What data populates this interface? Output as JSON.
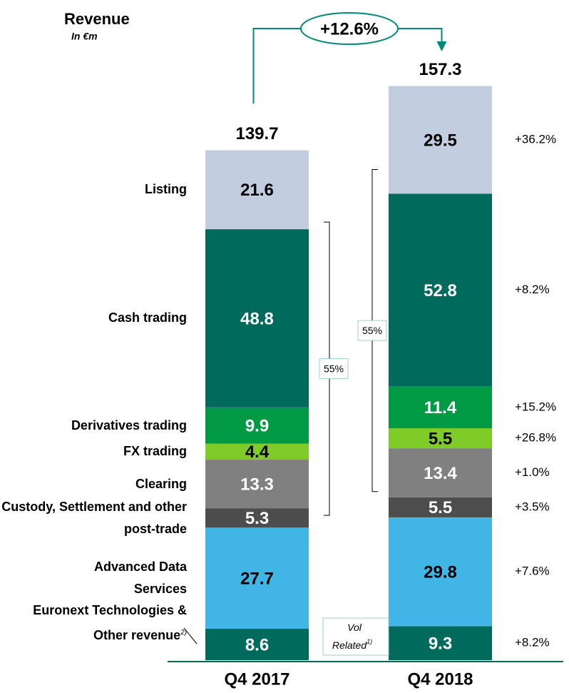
{
  "chart_data": {
    "type": "stacked-bar",
    "title": "Revenue",
    "subtitle": "In €m",
    "categories": [
      "Q4 2017",
      "Q4 2018"
    ],
    "totals": [
      139.7,
      157.3
    ],
    "growth": {
      "value": 12.6,
      "label": "+12.6%"
    },
    "series": [
      {
        "name": "Euronext Technologies & Other revenue",
        "footnote": "2)",
        "color": "#006a5c",
        "label_color": "#ffffff",
        "values": [
          8.6,
          9.3
        ],
        "change": {
          "value": 8.2,
          "label": "+8.2%"
        }
      },
      {
        "name": "Advanced Data Services",
        "color": "#41b6e6",
        "label_color": "#000000",
        "values": [
          27.7,
          29.8
        ],
        "change": {
          "value": 7.6,
          "label": "+7.6%"
        }
      },
      {
        "name": "Custody, Settlement and other post-trade",
        "color": "#4d4d4d",
        "label_color": "#ffffff",
        "values": [
          5.3,
          5.5
        ],
        "change": {
          "value": 3.5,
          "label": "+3.5%"
        }
      },
      {
        "name": "Clearing",
        "color": "#808080",
        "label_color": "#ffffff",
        "values": [
          13.3,
          13.4
        ],
        "change": {
          "value": 1.0,
          "label": "+1.0%"
        }
      },
      {
        "name": "FX trading",
        "color": "#7fcc28",
        "label_color": "#000000",
        "values": [
          4.4,
          5.5
        ],
        "change": {
          "value": 26.8,
          "label": "+26.8%"
        }
      },
      {
        "name": "Derivatives trading",
        "color": "#009a44",
        "label_color": "#ffffff",
        "values": [
          9.9,
          11.4
        ],
        "change": {
          "value": 15.2,
          "label": "+15.2%"
        }
      },
      {
        "name": "Cash trading",
        "color": "#006a5c",
        "label_color": "#ffffff",
        "values": [
          48.8,
          52.8
        ],
        "change": {
          "value": 8.2,
          "label": "+8.2%"
        }
      },
      {
        "name": "Listing",
        "color": "#c3cde0",
        "label_color": "#000000",
        "values": [
          21.6,
          29.5
        ],
        "change": {
          "value": 36.2,
          "label": "+36.2%"
        }
      }
    ],
    "brackets": [
      {
        "value": 55,
        "label": "55%"
      },
      {
        "value": 55,
        "label": "55%"
      }
    ],
    "annotation": "Vol Related",
    "annotation_note": "1)"
  }
}
